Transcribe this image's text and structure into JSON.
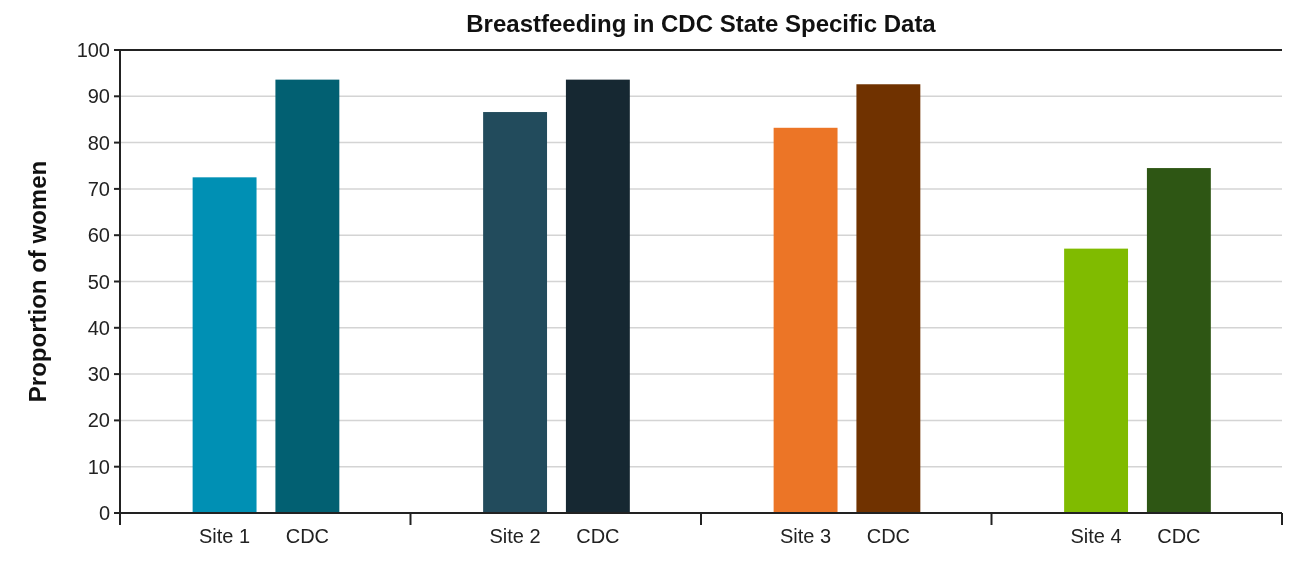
{
  "chart_data": {
    "type": "bar",
    "title": "Breastfeeding in CDC State Specific Data",
    "ylabel": "Proportion of women",
    "categories": [
      "Site 1",
      "CDC",
      "Site 2",
      "CDC",
      "Site 3",
      "CDC",
      "Site 4",
      "CDC"
    ],
    "values": [
      72.5,
      93.6,
      86.6,
      93.6,
      83.2,
      92.6,
      57.1,
      74.5
    ],
    "colors": [
      "#0090b4",
      "#026072",
      "#224b5c",
      "#162832",
      "#ec7526",
      "#703200",
      "#80bb00",
      "#2e5614"
    ],
    "ylim": [
      0,
      100
    ],
    "yticks": [
      0,
      10,
      20,
      30,
      40,
      50,
      60,
      70,
      80,
      90,
      100
    ],
    "grid": "y"
  }
}
